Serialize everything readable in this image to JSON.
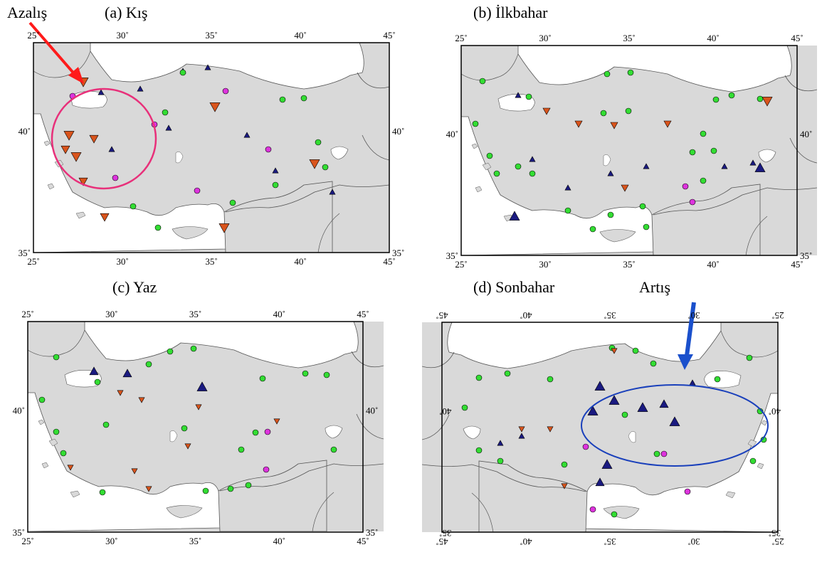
{
  "panels": [
    {
      "title": "(a) Kış",
      "x_ticks_top": [
        "25˚",
        "30˚",
        "35˚",
        "40˚",
        "45˚"
      ],
      "x_ticks_bottom": [
        "25˚",
        "30˚",
        "35˚",
        "40˚",
        "45˚"
      ],
      "y_ticks_left": [
        "40˚",
        "35˚"
      ],
      "y_ticks_right": [
        "40˚",
        "35˚"
      ],
      "mirrored": false
    },
    {
      "title": "(b) İlkbahar",
      "x_ticks_top": [
        "25˚",
        "30˚",
        "35˚",
        "40˚",
        "45˚"
      ],
      "x_ticks_bottom": [
        "25˚",
        "30˚",
        "35˚",
        "40˚",
        "45˚"
      ],
      "y_ticks_left": [
        "40˚",
        "35˚"
      ],
      "y_ticks_right": [
        "40˚",
        "35˚"
      ],
      "mirrored": false
    },
    {
      "title": "(c)  Yaz",
      "x_ticks_top": [
        "25˚",
        "30˚",
        "35˚",
        "40˚",
        "45˚"
      ],
      "x_ticks_bottom": [
        "25˚",
        "30˚",
        "35˚",
        "40˚",
        "45˚"
      ],
      "y_ticks_left": [
        "40˚",
        "35˚"
      ],
      "y_ticks_right": [
        "40˚",
        "35˚"
      ],
      "mirrored": false
    },
    {
      "title": "(d) Sonbahar",
      "x_ticks_top": [
        "25˚",
        "30˚",
        "35˚",
        "40˚",
        "45˚"
      ],
      "x_ticks_bottom": [
        "25˚",
        "30˚",
        "35˚",
        "40˚",
        "45˚"
      ],
      "y_ticks_left": [
        "40˚",
        "35˚"
      ],
      "y_ticks_right": [
        "40˚",
        "35˚"
      ],
      "mirrored": true
    }
  ],
  "callouts": {
    "decrease": "Azalış",
    "increase": "Artış"
  },
  "colors": {
    "land": "#d9d9d9",
    "sea": "#ffffff",
    "border": "#555555",
    "no_trend_circle": "#33dd33",
    "increase_triangle": "#1a1a80",
    "decrease_triangle": "#d9541c",
    "magenta_circle": "#dd33dd",
    "decrease_arrow": "#ff1a1a",
    "increase_arrow": "#1a50cc",
    "decrease_ellipse": "#e8307a",
    "increase_ellipse": "#1a40bb"
  },
  "icons": {
    "decrease_marker": "triangle-down-icon",
    "increase_marker": "triangle-up-icon",
    "no_trend_marker": "circle-icon"
  }
}
